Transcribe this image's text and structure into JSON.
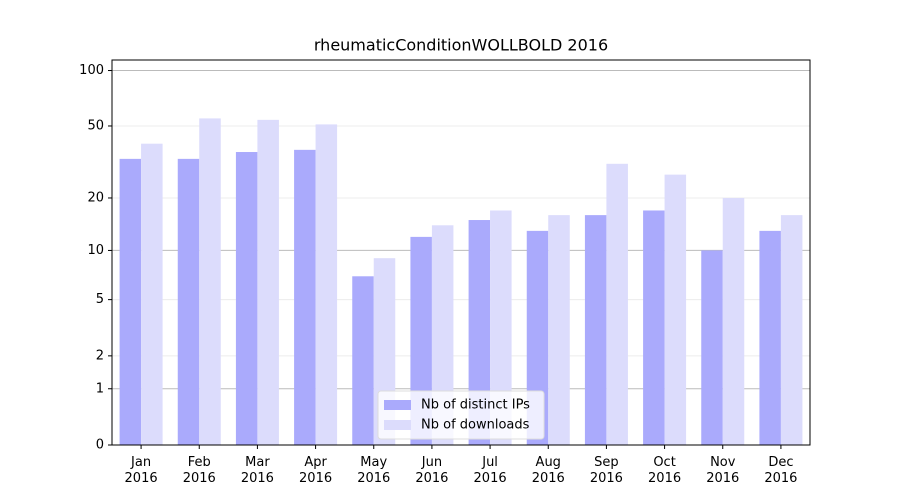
{
  "chart_data": {
    "type": "bar",
    "title": "rheumaticConditionWOLLBOLD 2016",
    "categories": [
      "Jan\n2016",
      "Feb\n2016",
      "Mar\n2016",
      "Apr\n2016",
      "May\n2016",
      "Jun\n2016",
      "Jul\n2016",
      "Aug\n2016",
      "Sep\n2016",
      "Oct\n2016",
      "Nov\n2016",
      "Dec\n2016"
    ],
    "series": [
      {
        "name": "Nb of distinct IPs",
        "color": "#aaaafc",
        "values": [
          33,
          33,
          36,
          37,
          7,
          12,
          15,
          13,
          16,
          17,
          10,
          13
        ]
      },
      {
        "name": "Nb of downloads",
        "color": "#dcdcfc",
        "values": [
          40,
          55,
          54,
          51,
          9,
          14,
          17,
          16,
          31,
          27,
          20,
          16
        ]
      }
    ],
    "ylim": [
      0,
      114
    ],
    "yticks": [
      0,
      1,
      2,
      5,
      10,
      20,
      50,
      100
    ],
    "yscale": "log1p",
    "grid": true,
    "legend": "lower center"
  }
}
